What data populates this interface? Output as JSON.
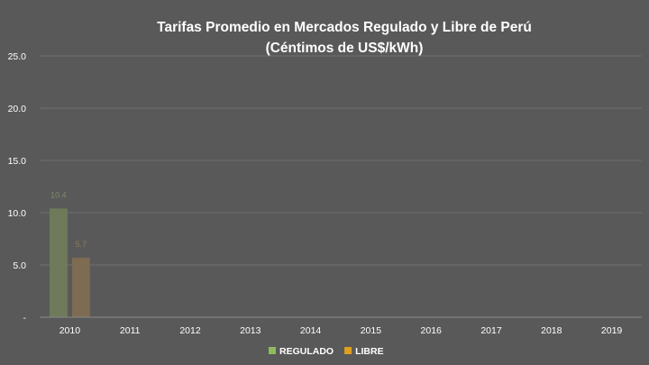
{
  "chart_data": {
    "type": "bar",
    "title_lines": [
      "Tarifas Promedio en Mercados Regulado y Libre de Perú",
      "(Céntimos de US$/kWh)"
    ],
    "categories": [
      "2010",
      "2011",
      "2012",
      "2013",
      "2014",
      "2015",
      "2016",
      "2017",
      "2018",
      "2019"
    ],
    "series": [
      {
        "name": "REGULADO",
        "color": "#6e7a5a",
        "legend_color": "#8fbc5a",
        "label_color": "#7e8a6a",
        "values": [
          10.4,
          null,
          null,
          null,
          null,
          null,
          null,
          null,
          null,
          null
        ],
        "labels": [
          "10.4",
          "",
          "",
          "",
          "",
          "",
          "",
          "",
          "",
          ""
        ]
      },
      {
        "name": "LIBRE",
        "color": "#7d6b52",
        "legend_color": "#e0a020",
        "label_color": "#8d7b62",
        "values": [
          5.7,
          null,
          null,
          null,
          null,
          null,
          null,
          null,
          null,
          null
        ],
        "labels": [
          "5.7",
          "",
          "",
          "",
          "",
          "",
          "",
          "",
          "",
          ""
        ]
      }
    ],
    "ylim": [
      0,
      25
    ],
    "yticks": [
      0,
      5,
      10,
      15,
      20,
      25
    ],
    "ytick_labels": [
      "-",
      "5.0",
      "10.0",
      "15.0",
      "20.0",
      "25.0"
    ],
    "grid": true,
    "legend": "bottom"
  }
}
